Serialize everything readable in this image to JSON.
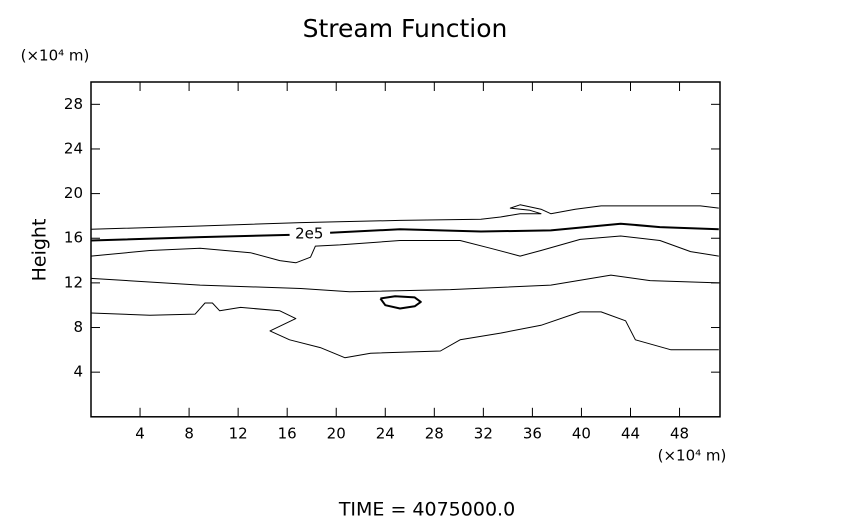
{
  "chart_data": {
    "type": "contour",
    "title": "Stream Function",
    "y_unit": "(×10⁴ m)",
    "x_unit": "(×10⁴ m)",
    "y_label": "Height",
    "footer": "TIME = 4075000.0",
    "xlim": [
      0,
      51.3
    ],
    "ylim": [
      0,
      30
    ],
    "xticks": [
      4,
      8,
      12,
      16,
      20,
      24,
      28,
      32,
      36,
      40,
      44,
      48
    ],
    "yticks": [
      4,
      8,
      12,
      16,
      20,
      24,
      28
    ],
    "color": "#000000",
    "series": [
      {
        "linewidth": 1,
        "x": [
          0,
          8.9,
          17.1,
          25.2,
          31.8,
          33.4,
          35.0,
          36.7,
          35.8,
          34.2,
          35.0,
          36.7,
          37.5,
          39.5,
          41.6,
          45.6,
          49.7,
          51.2
        ],
        "y": [
          16.8,
          17.1,
          17.4,
          17.6,
          17.7,
          17.9,
          18.2,
          18.2,
          18.5,
          18.7,
          19.0,
          18.6,
          18.2,
          18.6,
          18.9,
          18.9,
          18.9,
          18.7
        ]
      },
      {
        "linewidth": 2,
        "label": "2e5",
        "label_x": 17.8,
        "label_y": 16.4,
        "x": [
          0,
          8.9,
          16.2,
          17.8,
          19.5,
          25.2,
          31.8,
          37.5,
          43.2,
          46.4,
          51.2
        ],
        "y": [
          15.8,
          16.1,
          16.3,
          null,
          16.5,
          16.8,
          16.6,
          16.7,
          17.3,
          17.0,
          16.8
        ]
      },
      {
        "linewidth": 1,
        "x": [
          0,
          4.8,
          8.9,
          13.0,
          15.4,
          16.7,
          17.9,
          18.3,
          20.3,
          25.2,
          30.1,
          32.6,
          35.0,
          36.7,
          39.9,
          43.2,
          46.4,
          48.9,
          51.2
        ],
        "y": [
          14.4,
          14.9,
          15.1,
          14.7,
          14.0,
          13.8,
          14.3,
          15.3,
          15.4,
          15.8,
          15.8,
          15.1,
          14.4,
          14.9,
          15.9,
          16.2,
          15.8,
          14.8,
          14.4
        ]
      },
      {
        "linewidth": 1,
        "x": [
          0,
          8.9,
          17.1,
          21.1,
          29.3,
          37.5,
          42.4,
          45.6,
          51.2
        ],
        "y": [
          12.4,
          11.8,
          11.5,
          11.2,
          11.4,
          11.8,
          12.7,
          12.2,
          12.0
        ]
      },
      {
        "linewidth": 1,
        "x": [
          0,
          4.8,
          8.5,
          9.3,
          9.9,
          10.5,
          12.2,
          15.4,
          16.7,
          14.6,
          16.2,
          18.7,
          20.7,
          22.8,
          28.5,
          30.1,
          33.4,
          36.7,
          39.9,
          41.6,
          43.6,
          44.4,
          47.3,
          51.2
        ],
        "y": [
          9.3,
          9.1,
          9.2,
          10.2,
          10.2,
          9.5,
          9.8,
          9.5,
          8.8,
          7.7,
          6.9,
          6.2,
          5.3,
          5.7,
          5.9,
          6.9,
          7.5,
          8.2,
          9.4,
          9.4,
          8.6,
          6.9,
          6.0,
          6.0
        ]
      },
      {
        "linewidth": 2,
        "x": [
          23.6,
          24.8,
          26.4,
          26.9,
          26.4,
          25.2,
          24.0,
          23.6
        ],
        "y": [
          10.6,
          10.8,
          10.7,
          10.3,
          9.9,
          9.7,
          10.0,
          10.6
        ]
      }
    ]
  }
}
